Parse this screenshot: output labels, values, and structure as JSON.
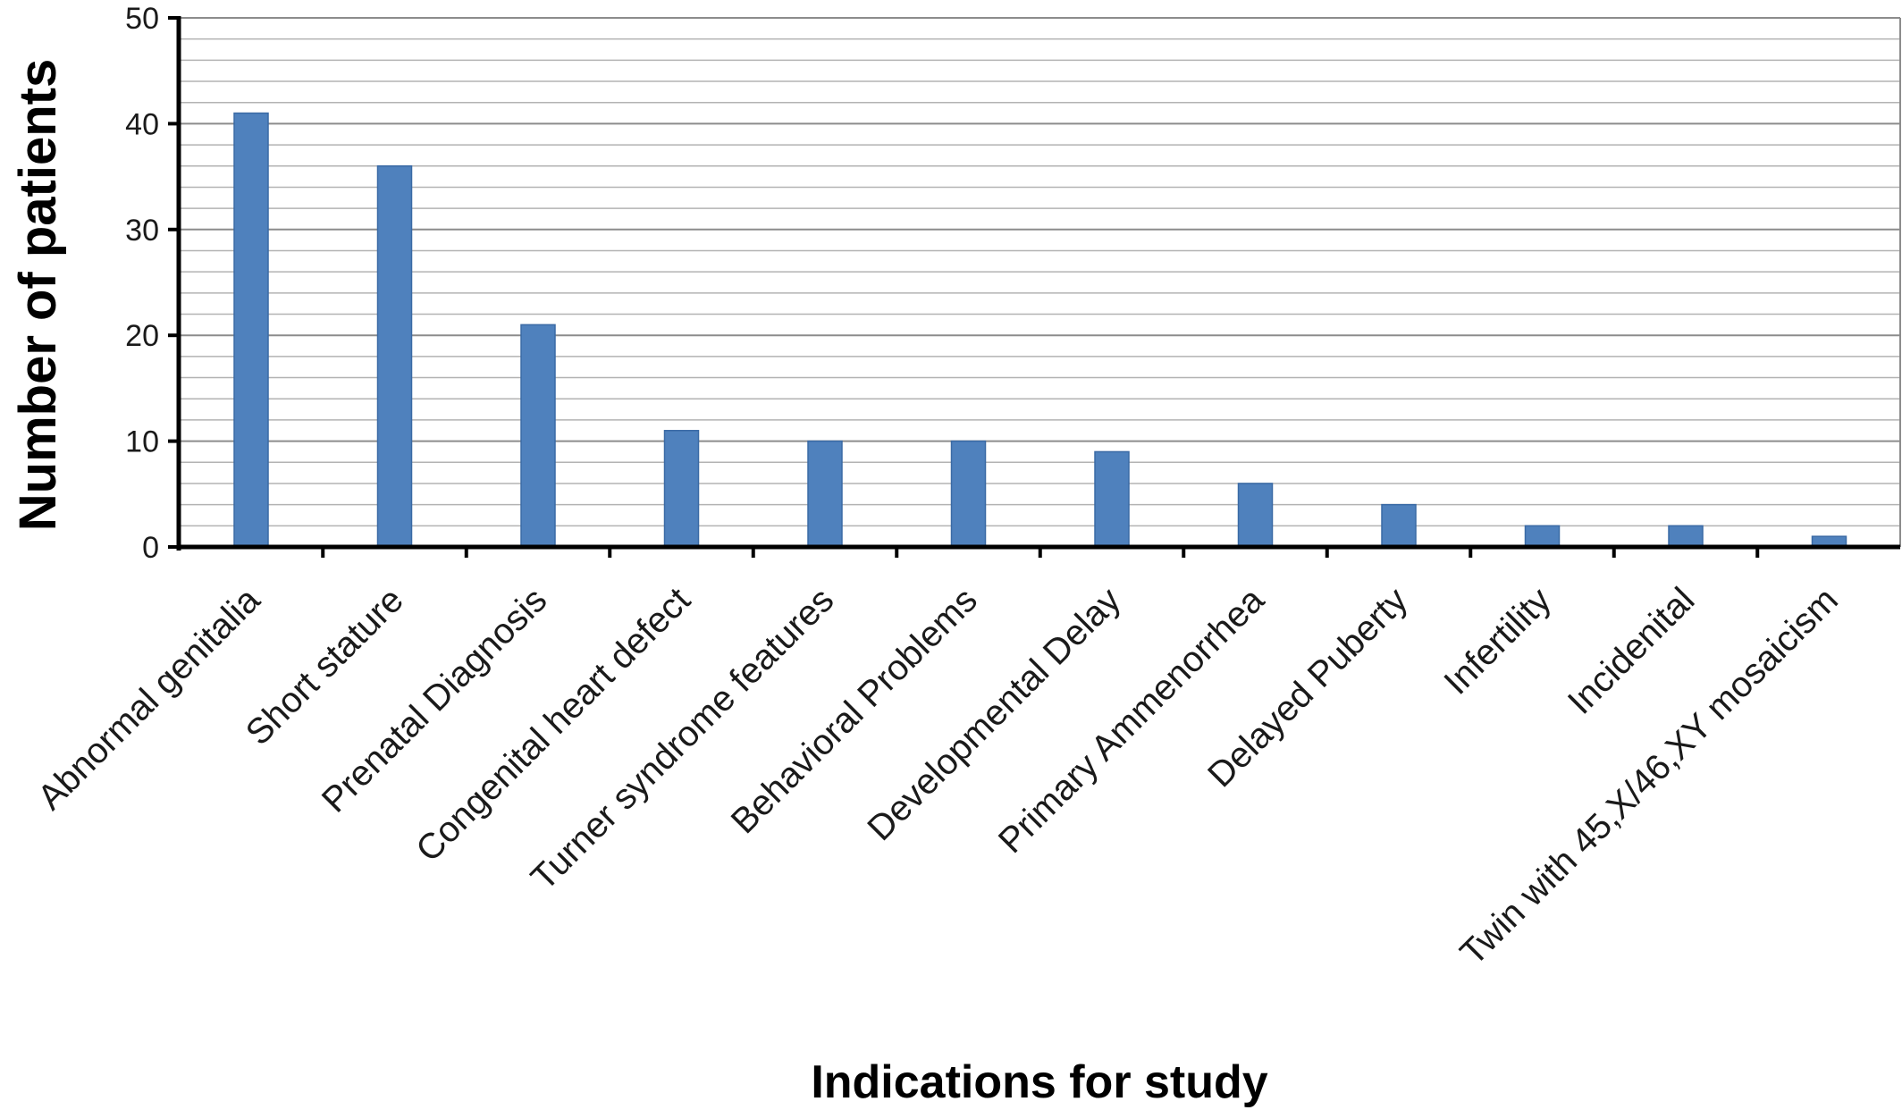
{
  "chart_data": {
    "type": "bar",
    "title": "",
    "xlabel": "Indications for study",
    "ylabel": "Number of patients",
    "ylim": [
      0,
      50
    ],
    "yticks": [
      0,
      10,
      20,
      30,
      40,
      50
    ],
    "minor_grid_step": 2,
    "grid": true,
    "legend": "none",
    "bar_color": "#4f81bd",
    "categories": [
      "Abnormal genitalia",
      "Short stature",
      "Prenatal Diagnosis",
      "Congenital heart defect",
      "Turner syndrome features",
      "Behavioral Problems",
      "Developmental Delay",
      "Primary Ammenorrhea",
      "Delayed Puberty",
      "Infertility",
      "Incidenital",
      "Twin with 45,X/46,XY mosaicism"
    ],
    "values": [
      41,
      36,
      21,
      11,
      10,
      10,
      9,
      6,
      4,
      2,
      2,
      1
    ]
  }
}
